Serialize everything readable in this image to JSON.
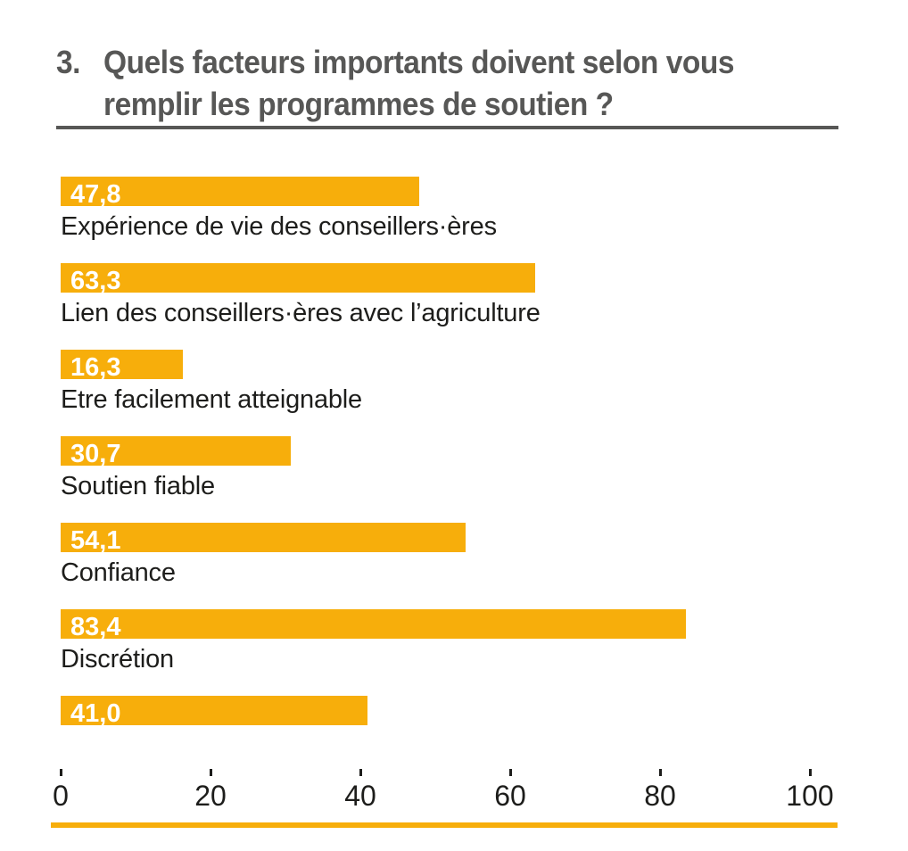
{
  "header": {
    "number": "3.",
    "title_line1": "Quels facteurs importants doivent selon vous",
    "title_line2": "remplir les programmes de soutien ?"
  },
  "chart_data": {
    "type": "bar",
    "orientation": "horizontal",
    "title": "3. Quels facteurs importants doivent selon vous remplir les programmes de soutien ?",
    "categories": [
      "Expérience de vie des conseillers·ères",
      "Lien des conseillers·ères avec l’agriculture",
      "Etre facilement atteignable",
      "Soutien fiable",
      "Confiance",
      "Discrétion",
      ""
    ],
    "values": [
      47.8,
      63.3,
      16.3,
      30.7,
      54.1,
      83.4,
      41.0
    ],
    "value_labels": [
      "47,8",
      "63,3",
      "16,3",
      "30,7",
      "54,1",
      "83,4",
      "41,0"
    ],
    "x_ticks": [
      0,
      20,
      40,
      60,
      80,
      100
    ],
    "xlim": [
      0,
      100
    ],
    "grid": false,
    "legend": false,
    "value_labels_position": "inside-left",
    "bar_color": "#F7AE0B",
    "axis_line_color": "#F7AE0B",
    "value_label_color": "#FFFFFF",
    "category_label_color": "#1D1D1B",
    "title_color": "#575756"
  }
}
